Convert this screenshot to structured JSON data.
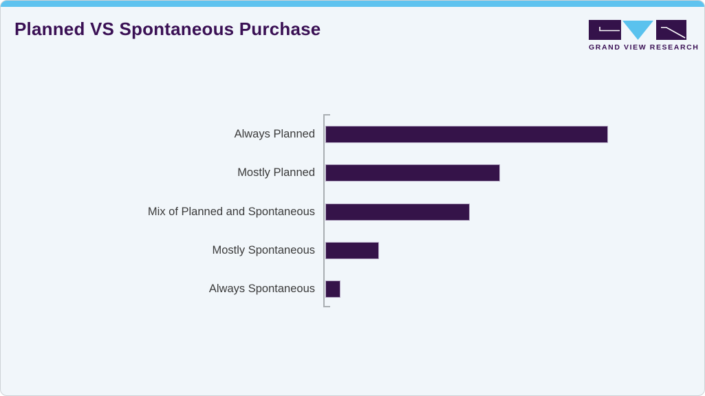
{
  "slide": {
    "title": "Planned VS Spontaneous Purchase",
    "accent_bar_color": "#5fc3ef",
    "background_color": "#f1f6fa",
    "title_color": "#3a1054"
  },
  "logo": {
    "text": "GRAND VIEW RESEARCH",
    "mark_color": "#34124a",
    "triangle_color": "#5ac2ee",
    "text_color": "#3a1054"
  },
  "chart_data": {
    "type": "bar",
    "orientation": "horizontal",
    "title": "Planned VS Spontaneous Purchase",
    "categories": [
      "Always Planned",
      "Mostly Planned",
      "Mix of Planned and Spontaneous",
      "Mostly Spontaneous",
      "Always Spontaneous"
    ],
    "values": [
      42,
      26,
      21.5,
      8,
      2.3
    ],
    "values_note": "estimated percentages from bar lengths; no numeric axis or data labels are shown in the image",
    "xlabel": "",
    "ylabel": "",
    "xlim": [
      0,
      45
    ],
    "grid": false,
    "legend": false,
    "bar_color": "#351349",
    "bar_border_color": "#b3a6c2",
    "axis_color": "#a9aeb2",
    "label_color": "#3a3a3a"
  }
}
